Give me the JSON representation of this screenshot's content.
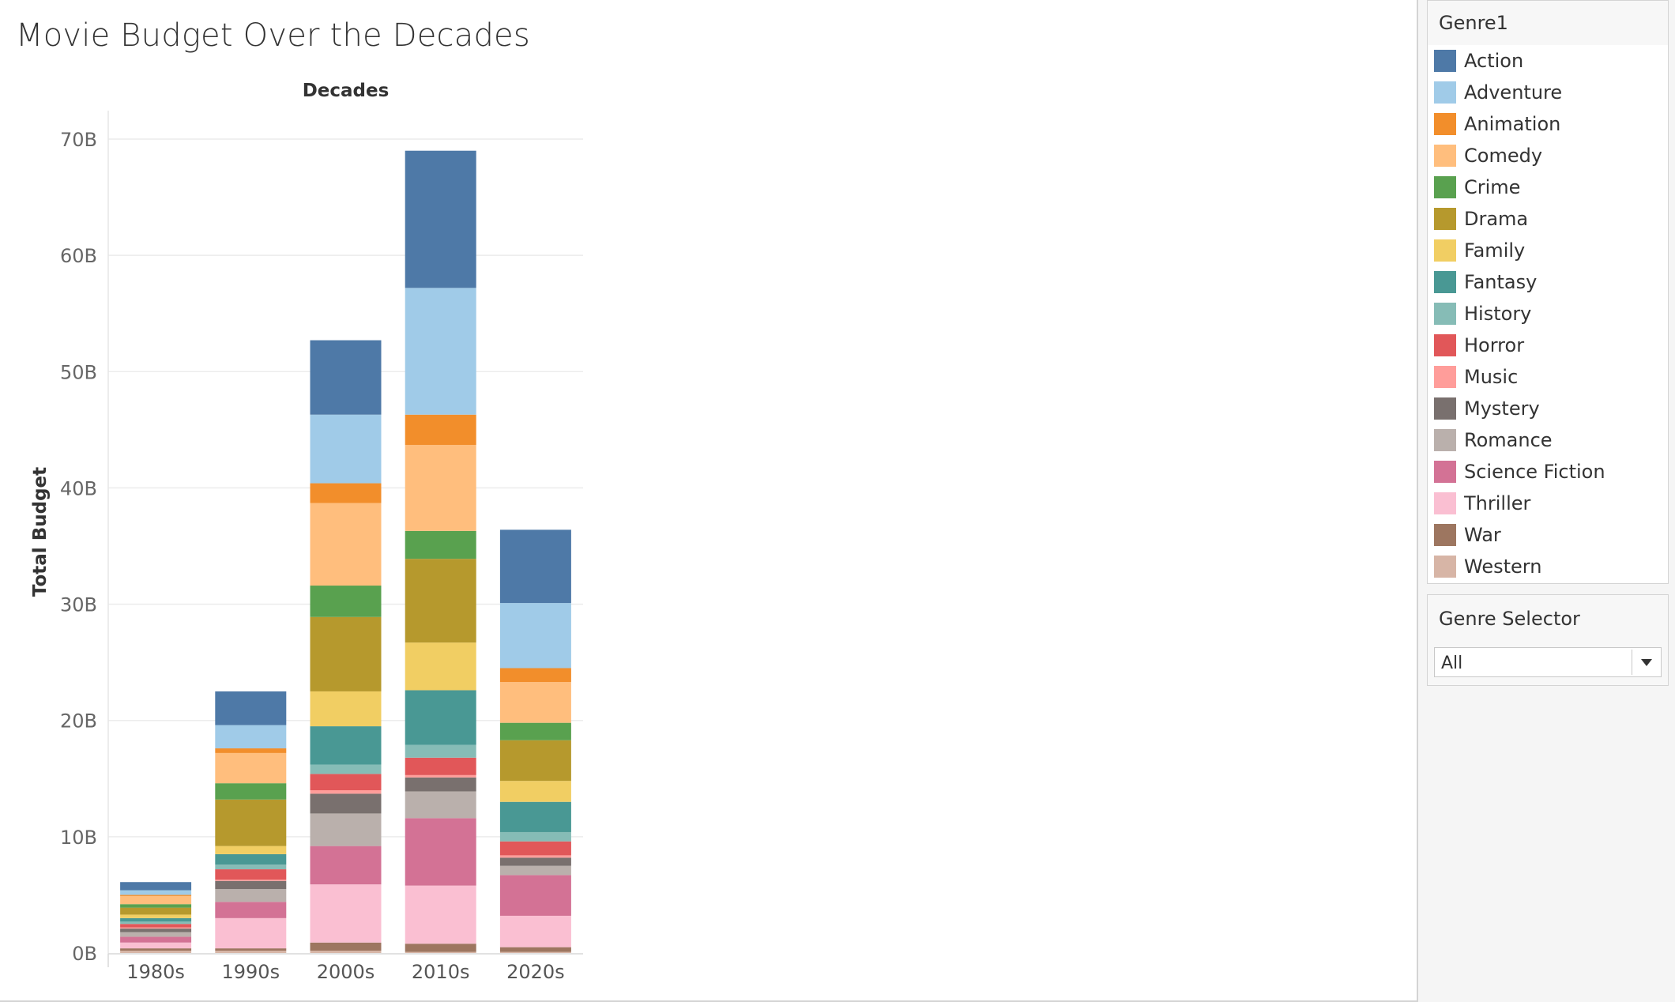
{
  "title": "Movie Budget Over the Decades",
  "legend": {
    "title": "Genre1",
    "items": [
      {
        "label": "Action",
        "color": "#4e79a7"
      },
      {
        "label": "Adventure",
        "color": "#a0cbe8"
      },
      {
        "label": "Animation",
        "color": "#f28e2b"
      },
      {
        "label": "Comedy",
        "color": "#ffbe7d"
      },
      {
        "label": "Crime",
        "color": "#59a14f"
      },
      {
        "label": "Drama",
        "color": "#b6992d"
      },
      {
        "label": "Family",
        "color": "#f1ce63"
      },
      {
        "label": "Fantasy",
        "color": "#499894"
      },
      {
        "label": "History",
        "color": "#86bcb6"
      },
      {
        "label": "Horror",
        "color": "#e15759"
      },
      {
        "label": "Music",
        "color": "#ff9d9a"
      },
      {
        "label": "Mystery",
        "color": "#79706e"
      },
      {
        "label": "Romance",
        "color": "#bab0ac"
      },
      {
        "label": "Science Fiction",
        "color": "#d37295"
      },
      {
        "label": "Thriller",
        "color": "#fabfd2"
      },
      {
        "label": "War",
        "color": "#9d7660"
      },
      {
        "label": "Western",
        "color": "#d7b5a6"
      }
    ]
  },
  "genre_selector": {
    "title": "Genre Selector",
    "value": "All"
  },
  "chart_data": {
    "type": "bar",
    "stacked": true,
    "title": "Movie Budget Over the Decades",
    "column_header": "Decades",
    "ylabel": "Total Budget",
    "categories": [
      "1980s",
      "1990s",
      "2000s",
      "2010s",
      "2020s"
    ],
    "y_ticks": [
      "0B",
      "10B",
      "20B",
      "30B",
      "40B",
      "50B",
      "60B",
      "70B"
    ],
    "ylim": [
      0,
      70
    ],
    "unit": "B",
    "grid": true,
    "legend_position": "right",
    "series": [
      {
        "name": "Western",
        "values": [
          0.2,
          0.2,
          0.2,
          0.1,
          0.1
        ]
      },
      {
        "name": "War",
        "values": [
          0.2,
          0.2,
          0.7,
          0.7,
          0.4
        ]
      },
      {
        "name": "Thriller",
        "values": [
          0.5,
          2.6,
          5.0,
          5.0,
          2.7
        ]
      },
      {
        "name": "Science Fiction",
        "values": [
          0.5,
          1.4,
          3.3,
          5.8,
          3.5
        ]
      },
      {
        "name": "Romance",
        "values": [
          0.4,
          1.1,
          2.8,
          2.3,
          0.8
        ]
      },
      {
        "name": "Mystery",
        "values": [
          0.3,
          0.7,
          1.7,
          1.2,
          0.7
        ]
      },
      {
        "name": "Music",
        "values": [
          0.1,
          0.1,
          0.3,
          0.2,
          0.2
        ]
      },
      {
        "name": "Horror",
        "values": [
          0.3,
          0.9,
          1.4,
          1.5,
          1.2
        ]
      },
      {
        "name": "History",
        "values": [
          0.2,
          0.4,
          0.8,
          1.1,
          0.8
        ]
      },
      {
        "name": "Fantasy",
        "values": [
          0.3,
          0.9,
          3.3,
          4.7,
          2.6
        ]
      },
      {
        "name": "Family",
        "values": [
          0.3,
          0.7,
          3.0,
          4.1,
          1.8
        ]
      },
      {
        "name": "Drama",
        "values": [
          0.6,
          4.0,
          6.4,
          7.2,
          3.5
        ]
      },
      {
        "name": "Crime",
        "values": [
          0.3,
          1.4,
          2.7,
          2.4,
          1.5
        ]
      },
      {
        "name": "Comedy",
        "values": [
          0.7,
          2.6,
          7.1,
          7.4,
          3.5
        ]
      },
      {
        "name": "Animation",
        "values": [
          0.1,
          0.4,
          1.7,
          2.6,
          1.2
        ]
      },
      {
        "name": "Adventure",
        "values": [
          0.4,
          2.0,
          5.9,
          10.9,
          5.6
        ]
      },
      {
        "name": "Action",
        "values": [
          0.7,
          2.9,
          6.4,
          11.8,
          6.3
        ]
      }
    ]
  }
}
